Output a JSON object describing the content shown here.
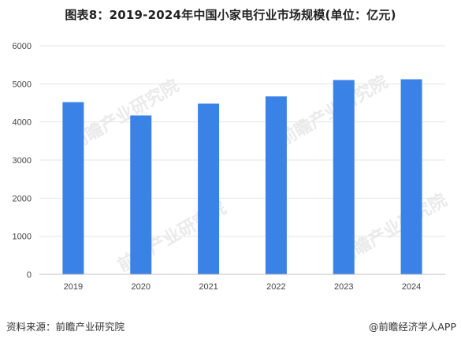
{
  "chart_data": {
    "type": "bar",
    "title": "图表8：2019-2024年中国小家电行业市场规模(单位：亿元)",
    "categories": [
      "2019",
      "2020",
      "2021",
      "2022",
      "2023",
      "2024"
    ],
    "values": [
      4520,
      4170,
      4480,
      4670,
      5100,
      5120
    ],
    "ylim": [
      0,
      6000
    ],
    "yticks": [
      0,
      1000,
      2000,
      3000,
      4000,
      5000,
      6000
    ],
    "grid": true,
    "legend": "none",
    "bar_color": "#3b82e6"
  },
  "footer": {
    "source": "资料来源：前瞻产业研究院",
    "brand": "@前瞻经济学人APP"
  },
  "watermark": {
    "text": "前瞻产业研究院"
  }
}
